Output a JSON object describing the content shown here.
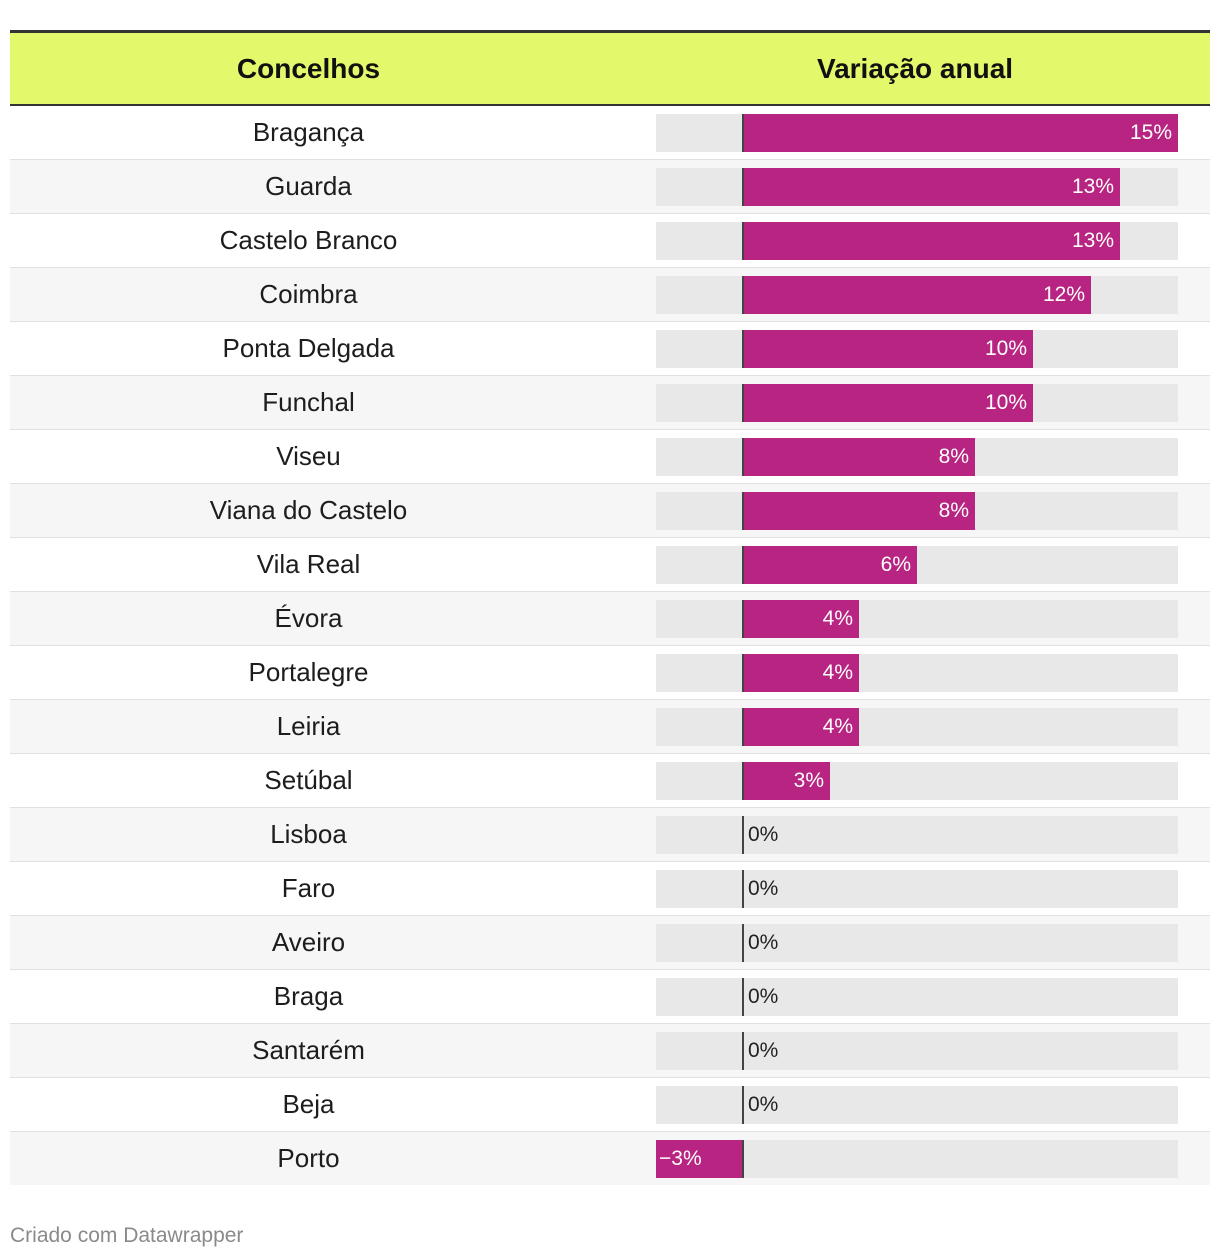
{
  "chart_data": {
    "type": "table",
    "columns": [
      "Concelhos",
      "Variação anual"
    ],
    "xlim": [
      -3,
      15
    ],
    "bar_color": "#b82481",
    "header_color": "#e4f86c",
    "rows": [
      {
        "name": "Bragança",
        "value": 15,
        "label": "15%"
      },
      {
        "name": "Guarda",
        "value": 13,
        "label": "13%"
      },
      {
        "name": "Castelo Branco",
        "value": 13,
        "label": "13%"
      },
      {
        "name": "Coimbra",
        "value": 12,
        "label": "12%"
      },
      {
        "name": "Ponta Delgada",
        "value": 10,
        "label": "10%"
      },
      {
        "name": "Funchal",
        "value": 10,
        "label": "10%"
      },
      {
        "name": "Viseu",
        "value": 8,
        "label": "8%"
      },
      {
        "name": "Viana do Castelo",
        "value": 8,
        "label": "8%"
      },
      {
        "name": "Vila Real",
        "value": 6,
        "label": "6%"
      },
      {
        "name": "Évora",
        "value": 4,
        "label": "4%"
      },
      {
        "name": "Portalegre",
        "value": 4,
        "label": "4%"
      },
      {
        "name": "Leiria",
        "value": 4,
        "label": "4%"
      },
      {
        "name": "Setúbal",
        "value": 3,
        "label": "3%"
      },
      {
        "name": "Lisboa",
        "value": 0,
        "label": "0%"
      },
      {
        "name": "Faro",
        "value": 0,
        "label": "0%"
      },
      {
        "name": "Aveiro",
        "value": 0,
        "label": "0%"
      },
      {
        "name": "Braga",
        "value": 0,
        "label": "0%"
      },
      {
        "name": "Santarém",
        "value": 0,
        "label": "0%"
      },
      {
        "name": "Beja",
        "value": 0,
        "label": "0%"
      },
      {
        "name": "Porto",
        "value": -3,
        "label": "−3%"
      }
    ]
  },
  "footer": {
    "credit": "Criado com Datawrapper"
  }
}
